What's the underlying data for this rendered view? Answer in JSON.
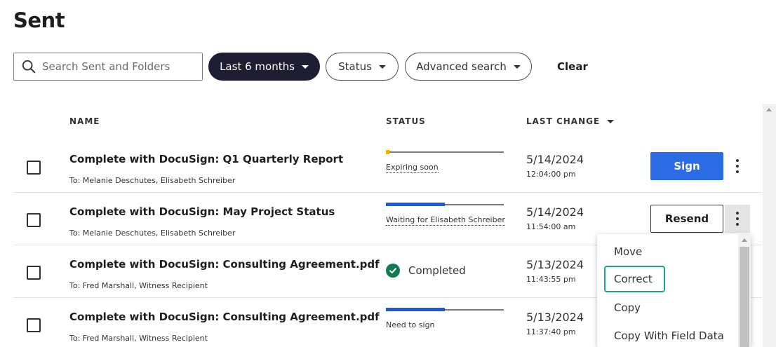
{
  "page_title": "Sent",
  "search": {
    "placeholder": "Search Sent and Folders"
  },
  "filters": {
    "date_range_label": "Last 6 months",
    "status_label": "Status",
    "advanced_label": "Advanced search",
    "clear_label": "Clear"
  },
  "columns": {
    "name": "NAME",
    "status": "STATUS",
    "last_change": "LAST CHANGE"
  },
  "rows": [
    {
      "title": "Complete with DocuSign: Q1 Quarterly Report",
      "recipients": "To: Melanie Deschutes, Elisabeth Schreiber",
      "status_text": "Expiring soon",
      "date": "5/14/2024",
      "time": "12:04:00 pm",
      "action_label": "Sign"
    },
    {
      "title": "Complete with DocuSign: May Project Status",
      "recipients": "To: Melanie Deschutes, Elisabeth Schreiber",
      "status_text": "Waiting for Elisabeth Schreiber",
      "progress": 0.5,
      "date": "5/14/2024",
      "time": "11:54:00 am",
      "action_label": "Resend"
    },
    {
      "title": "Complete with DocuSign: Consulting Agreement.pdf",
      "recipients": "To: Fred Marshall, Witness Recipient",
      "status_text": "Completed",
      "date": "5/13/2024",
      "time": "11:43:55 pm"
    },
    {
      "title": "Complete with DocuSign: Consulting Agreement.pdf",
      "recipients": "To: Fred Marshall, Witness Recipient",
      "status_text": "Need to sign",
      "progress": 0.5,
      "date": "5/13/2024",
      "time": "11:37:40 pm"
    }
  ],
  "menu": {
    "items": [
      "Move",
      "Correct",
      "Copy",
      "Copy With Field Data"
    ],
    "focused_item": "Correct"
  },
  "colors": {
    "primary_blue": "#2b6be6",
    "dark_pill": "#1f1d33",
    "progress_blue": "#1a5bd6",
    "warning_yellow": "#f2b200",
    "completed_green": "#0f7b4f",
    "focus_teal": "#1fa38b"
  },
  "icons": {
    "search": "search-icon",
    "caret": "caret-down-icon",
    "kebab": "kebab-menu-icon",
    "check": "check-circle-icon"
  }
}
